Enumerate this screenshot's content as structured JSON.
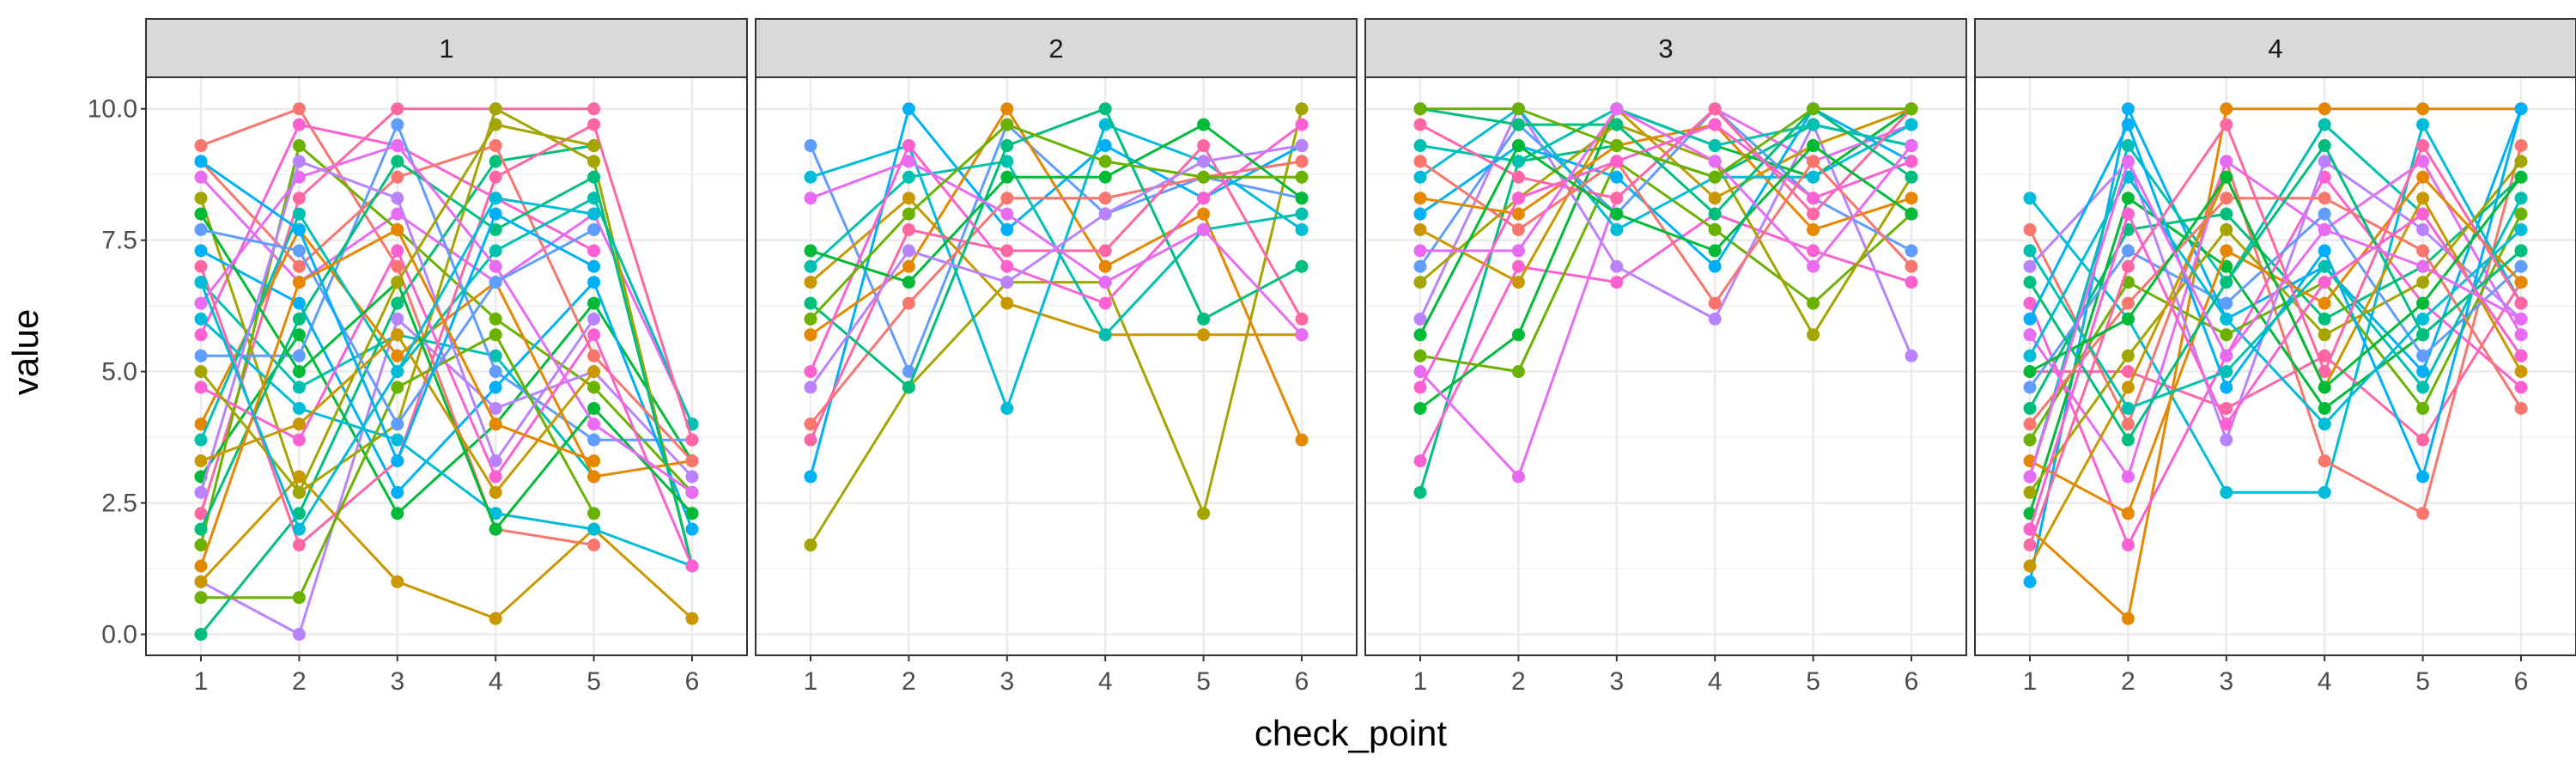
{
  "chart_data": {
    "type": "line",
    "xlabel": "check_point",
    "ylabel": "value",
    "ylim": [
      -0.4,
      10.6
    ],
    "y_ticks": [
      "0.0",
      "2.5",
      "5.0",
      "7.5",
      "10.0"
    ],
    "y_tick_values": [
      0,
      2.5,
      5,
      7.5,
      10
    ],
    "x_ticks": [
      "1",
      "2",
      "3",
      "4",
      "5",
      "6"
    ],
    "grid": true,
    "legend": "none",
    "series_colors": [
      "#F8766D",
      "#E58700",
      "#C99800",
      "#A3A500",
      "#6BB100",
      "#00BA38",
      "#00BF7D",
      "#00C0AF",
      "#00BCD8",
      "#00B0F6",
      "#619CFF",
      "#B983FF",
      "#E76BF3",
      "#FD61D1",
      "#FF67A4"
    ],
    "panels": [
      {
        "label": "1",
        "series": [
          {
            "values": [
              9.3,
              10.0,
              7.0,
              2.0,
              1.7
            ]
          },
          {
            "values": [
              6.7,
              4.7,
              5.7,
              5.3,
              3.0
            ]
          },
          {
            "values": [
              2.3,
              8.3,
              10.0,
              10.0,
              10.0
            ]
          },
          {
            "values": [
              0.0,
              2.3,
              6.3,
              9.0,
              9.3
            ]
          },
          {
            "values": [
              5.7,
              9.7,
              9.3,
              8.3,
              7.3
            ]
          },
          {
            "values": [
              3.0,
              5.7,
              2.3,
              4.0,
              6.3,
              3.3
            ]
          },
          {
            "values": [
              8.7,
              6.7,
              8.0,
              6.7,
              8.0,
              4.0
            ]
          },
          {
            "values": [
              1.7,
              9.3,
              7.7,
              6.0,
              4.7,
              2.7
            ]
          },
          {
            "values": [
              1.0,
              0.0,
              6.0,
              4.3,
              5.0,
              3.0
            ]
          },
          {
            "values": [
              8.3,
              2.7,
              4.0,
              10.0,
              9.0,
              1.3
            ]
          },
          {
            "values": [
              5.3,
              5.3,
              9.7,
              5.0,
              3.7,
              3.7
            ]
          },
          {
            "values": [
              1.0,
              3.0,
              1.0,
              0.3,
              2.0,
              0.3
            ]
          },
          {
            "values": [
              7.3,
              6.3,
              2.7,
              4.7,
              6.7,
              2.0
            ]
          },
          {
            "values": [
              4.0,
              7.7,
              5.3,
              6.7,
              3.0,
              3.3
            ]
          },
          {
            "values": [
              6.0,
              4.3,
              3.7,
              2.3,
              2.0,
              1.3
            ]
          },
          {
            "values": [
              9.0,
              7.0,
              8.7,
              9.3,
              5.3,
              3.3
            ]
          },
          {
            "values": [
              3.7,
              8.0,
              5.0,
              7.3,
              8.3,
              4.0
            ]
          },
          {
            "values": [
              7.0,
              1.7,
              3.3,
              8.7,
              9.7,
              3.7
            ]
          },
          {
            "values": [
              2.0,
              6.0,
              9.0,
              7.7,
              8.7,
              1.3
            ]
          },
          {
            "values": [
              4.7,
              3.7,
              7.3,
              3.0,
              5.7,
              1.3
            ]
          },
          {
            "values": [
              8.0,
              5.0,
              6.7,
              2.0,
              4.3,
              2.3
            ]
          },
          {
            "values": [
              6.3,
              8.7,
              9.3,
              7.0,
              4.0,
              2.7
            ]
          },
          {
            "values": [
              0.7,
              0.7,
              4.7,
              5.7,
              2.3
            ]
          },
          {
            "values": [
              2.7,
              9.0,
              8.3,
              3.3,
              6.0
            ]
          },
          {
            "values": [
              5.0,
              2.7,
              6.7,
              9.7,
              9.3
            ]
          },
          {
            "values": [
              7.7,
              7.3,
              4.0,
              6.7,
              7.7
            ]
          },
          {
            "values": [
              3.3,
              4.0,
              5.7,
              2.7,
              5.0
            ]
          },
          {
            "values": [
              9.0,
              7.7,
              3.3,
              8.0,
              7.0
            ]
          },
          {
            "values": [
              1.3,
              6.7,
              7.7,
              4.0,
              3.3
            ]
          },
          {
            "values": [
              6.7,
              2.0,
              5.0,
              8.3,
              8.0
            ]
          }
        ]
      },
      {
        "label": "2",
        "series": [
          {
            "values": [
              1.7,
              4.7,
              6.7,
              6.7,
              2.3,
              10.0
            ]
          },
          {
            "values": [
              9.3,
              5.0,
              9.7,
              8.0,
              8.7,
              8.3
            ]
          },
          {
            "values": [
              6.7,
              8.3,
              6.3,
              5.7,
              5.7,
              5.7
            ]
          },
          {
            "values": [
              3.0,
              10.0,
              7.7,
              9.3,
              8.3,
              9.3
            ]
          },
          {
            "values": [
              5.7,
              7.0,
              10.0,
              7.0,
              8.0,
              3.7
            ]
          },
          {
            "values": [
              8.7,
              9.3,
              4.3,
              9.7,
              9.0,
              7.7
            ]
          },
          {
            "values": [
              4.0,
              6.3,
              8.3,
              8.3,
              8.7,
              9.0
            ]
          },
          {
            "values": [
              7.0,
              8.7,
              9.0,
              5.7,
              7.7,
              8.0
            ]
          },
          {
            "values": [
              3.7,
              7.7,
              7.3,
              7.3,
              9.3,
              6.0
            ]
          },
          {
            "values": [
              6.3,
              4.7,
              9.3,
              10.0,
              6.0,
              7.0
            ]
          },
          {
            "values": [
              5.0,
              9.3,
              7.0,
              6.3,
              8.3,
              9.7
            ]
          },
          {
            "values": [
              7.3,
              6.7,
              8.7,
              8.7,
              9.7,
              8.3
            ]
          },
          {
            "values": [
              8.3,
              9.0,
              8.0,
              6.7,
              7.7,
              5.7
            ]
          },
          {
            "values": [
              6.0,
              8.0,
              9.7,
              9.0,
              8.7,
              8.7
            ]
          },
          {
            "values": [
              4.7,
              7.3,
              6.7,
              8.0,
              9.0,
              9.3
            ]
          }
        ]
      },
      {
        "label": "3",
        "series": [
          {
            "values": [
              2.7,
              9.0,
              9.3,
              8.7,
              9.7,
              9.3
            ]
          },
          {
            "values": [
              3.3,
              7.0,
              6.7,
              8.0,
              7.3,
              6.7
            ]
          },
          {
            "values": [
              4.3,
              5.7,
              10.0,
              9.3,
              8.7,
              10.0
            ]
          },
          {
            "values": [
              5.0,
              3.0,
              8.3,
              10.0,
              9.0,
              9.7
            ]
          },
          {
            "values": [
              5.3,
              5.0,
              9.0,
              7.7,
              6.3,
              8.0
            ]
          },
          {
            "values": [
              6.0,
              10.0,
              7.0,
              6.0,
              9.7,
              5.3
            ]
          },
          {
            "values": [
              6.7,
              8.3,
              9.7,
              9.0,
              5.7,
              8.7
            ]
          },
          {
            "values": [
              7.0,
              9.7,
              8.0,
              10.0,
              8.3,
              7.3
            ]
          },
          {
            "values": [
              7.7,
              6.7,
              10.0,
              8.3,
              9.3,
              10.0
            ]
          },
          {
            "values": [
              8.0,
              9.3,
              8.7,
              7.0,
              10.0,
              9.0
            ]
          },
          {
            "values": [
              8.3,
              8.0,
              9.3,
              9.7,
              7.7,
              8.3
            ]
          },
          {
            "values": [
              8.7,
              10.0,
              7.7,
              8.7,
              8.7,
              9.7
            ]
          },
          {
            "values": [
              9.0,
              7.7,
              9.0,
              6.3,
              9.0,
              7.0
            ]
          },
          {
            "values": [
              9.3,
              9.0,
              10.0,
              9.3,
              9.7,
              9.3
            ]
          },
          {
            "values": [
              9.7,
              8.7,
              8.3,
              10.0,
              8.0,
              10.0
            ]
          },
          {
            "values": [
              10.0,
              9.7,
              9.7,
              8.0,
              10.0,
              8.7
            ]
          },
          {
            "values": [
              4.7,
              8.3,
              9.0,
              9.7,
              8.3,
              9.0
            ]
          },
          {
            "values": [
              5.7,
              9.3,
              8.0,
              7.3,
              9.3,
              8.0
            ]
          },
          {
            "values": [
              7.3,
              7.3,
              10.0,
              9.0,
              7.0,
              9.3
            ]
          },
          {
            "values": [
              10.0,
              10.0,
              9.3,
              8.7,
              10.0,
              10.0
            ]
          }
        ]
      },
      {
        "label": "4",
        "series": [
          {
            "values": [
              1.0,
              10.0,
              6.0,
              7.0,
              5.0,
              10.0
            ]
          },
          {
            "values": [
              2.0,
              0.3,
              10.0,
              10.0,
              10.0,
              10.0
            ]
          },
          {
            "values": [
              8.3,
              6.0,
              2.7,
              2.7,
              9.7,
              6.3
            ]
          },
          {
            "values": [
              7.7,
              4.0,
              9.0,
              3.3,
              2.3,
              9.3
            ]
          },
          {
            "values": [
              3.0,
              9.3,
              6.7,
              9.7,
              8.0,
              5.3
            ]
          },
          {
            "values": [
              5.0,
              5.0,
              4.3,
              5.3,
              3.7,
              6.7
            ]
          },
          {
            "values": [
              4.3,
              7.7,
              8.0,
              6.0,
              7.0,
              8.7
            ]
          },
          {
            "values": [
              6.3,
              1.7,
              5.3,
              8.7,
              6.3,
              4.7
            ]
          },
          {
            "values": [
              2.3,
              8.3,
              7.0,
              4.3,
              5.7,
              7.3
            ]
          },
          {
            "values": [
              5.7,
              3.0,
              9.0,
              7.7,
              9.0,
              5.7
            ]
          },
          {
            "values": [
              3.7,
              6.7,
              5.7,
              6.7,
              4.3,
              8.0
            ]
          },
          {
            "values": [
              7.0,
              9.0,
              3.7,
              9.0,
              7.7,
              6.0
            ]
          },
          {
            "values": [
              2.7,
              5.3,
              7.7,
              5.7,
              6.7,
              9.0
            ]
          },
          {
            "values": [
              4.7,
              7.3,
              6.3,
              8.0,
              5.3,
              7.0
            ]
          },
          {
            "values": [
              1.3,
              4.7,
              8.7,
              4.7,
              8.3,
              5.0
            ]
          },
          {
            "values": [
              6.0,
              9.7,
              4.7,
              7.3,
              3.0,
              10.0
            ]
          },
          {
            "values": [
              3.3,
              2.3,
              7.3,
              6.3,
              8.7,
              6.7
            ]
          },
          {
            "values": [
              5.3,
              8.7,
              6.0,
              4.0,
              6.0,
              7.7
            ]
          },
          {
            "values": [
              4.0,
              6.3,
              8.3,
              8.3,
              7.3,
              4.3
            ]
          },
          {
            "values": [
              7.3,
              4.3,
              5.0,
              7.0,
              4.7,
              8.3
            ]
          },
          {
            "values": [
              1.7,
              7.0,
              9.7,
              5.0,
              9.3,
              6.3
            ]
          },
          {
            "values": [
              6.7,
              3.7,
              6.7,
              9.3,
              5.7,
              7.3
            ]
          },
          {
            "values": [
              2.0,
              8.0,
              4.0,
              6.7,
              8.0,
              5.3
            ]
          },
          {
            "values": [
              5.0,
              6.0,
              8.7,
              4.7,
              6.3,
              8.7
            ]
          },
          {
            "values": [
              3.0,
              9.0,
              5.3,
              7.7,
              7.0,
              6.0
            ]
          }
        ]
      }
    ]
  }
}
